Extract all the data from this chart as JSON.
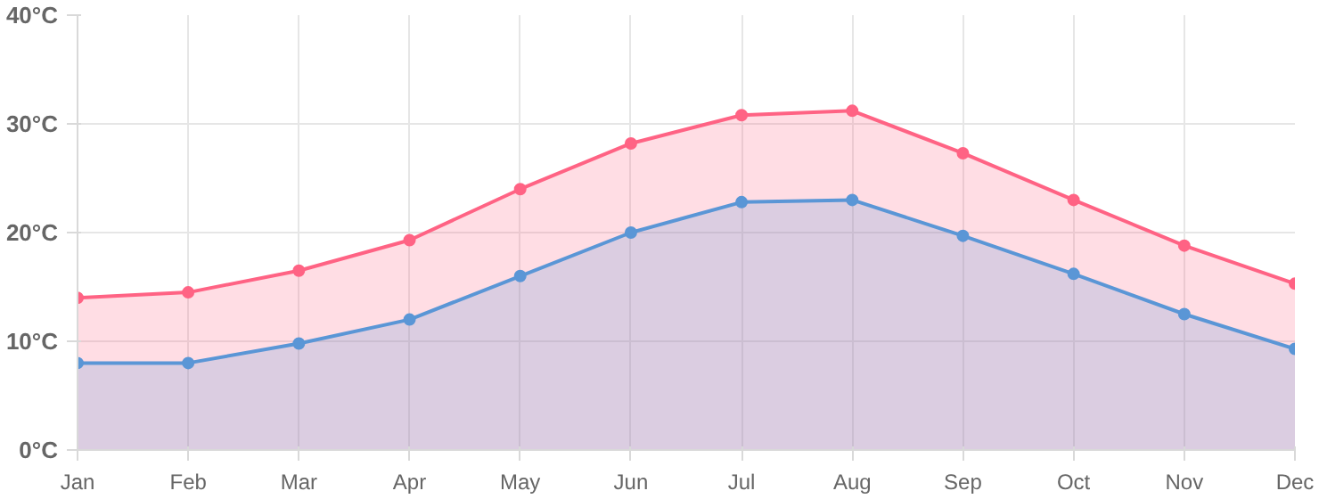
{
  "chart_data": {
    "type": "area",
    "categories": [
      "Jan",
      "Feb",
      "Mar",
      "Apr",
      "May",
      "Jun",
      "Jul",
      "Aug",
      "Sep",
      "Oct",
      "Nov",
      "Dec"
    ],
    "series": [
      {
        "color": "#ff6384",
        "values": [
          14.0,
          14.5,
          16.5,
          19.3,
          24.0,
          28.2,
          30.8,
          31.2,
          27.3,
          23.0,
          18.8,
          15.3
        ]
      },
      {
        "color": "#5a96d6",
        "values": [
          8.0,
          8.0,
          9.8,
          12.0,
          16.0,
          20.0,
          22.8,
          23.0,
          19.7,
          16.2,
          12.5,
          9.3
        ]
      }
    ],
    "ylim": [
      0,
      40
    ],
    "yticks": [
      {
        "value": 0,
        "label": "0°C"
      },
      {
        "value": 10,
        "label": "10°C"
      },
      {
        "value": 20,
        "label": "20°C"
      },
      {
        "value": 30,
        "label": "30°C"
      },
      {
        "value": 40,
        "label": "40°C"
      }
    ],
    "grid": true,
    "marker": "circle",
    "line_style": "solid"
  }
}
